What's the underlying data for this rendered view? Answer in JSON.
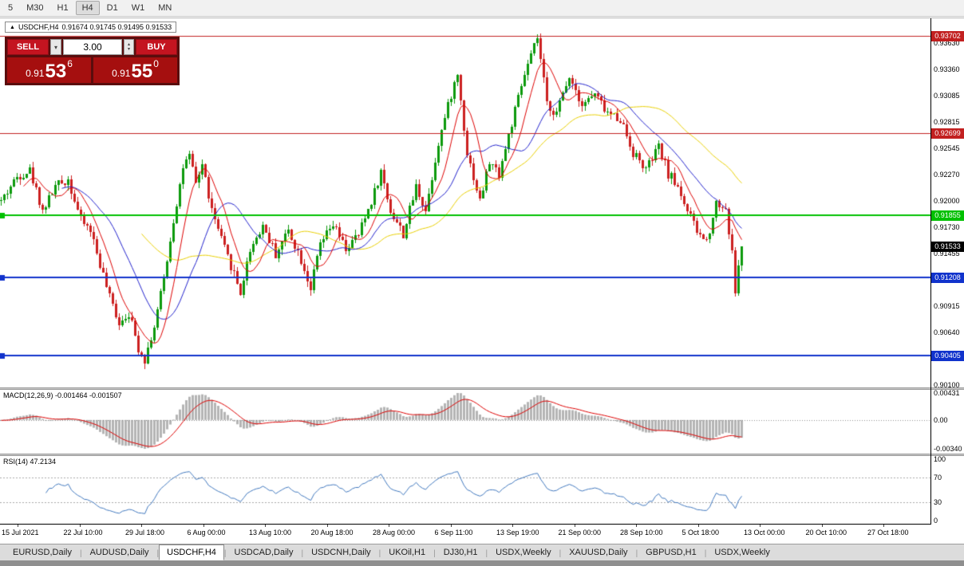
{
  "toolbar": {
    "timeframes": [
      "5",
      "M30",
      "H1",
      "H4",
      "D1",
      "W1",
      "MN"
    ],
    "active": "H4"
  },
  "chart_header": {
    "marker": "▲",
    "symbol": "USDCHF,H4",
    "ohlc": "0.91674 0.91745 0.91495 0.91533"
  },
  "trade_panel": {
    "sell_label": "SELL",
    "buy_label": "BUY",
    "volume": "3.00",
    "dropdown_icon": "▾",
    "spin_up_icon": "▴",
    "spin_down_icon": "▾",
    "bid": {
      "prefix": "0.91",
      "big": "53",
      "sup": "6"
    },
    "ask": {
      "prefix": "0.91",
      "big": "55",
      "sup": "0"
    }
  },
  "chart_data": {
    "type": "candlestick",
    "symbol": "USDCHF",
    "timeframe": "H4",
    "title": "USDCHF,H4 0.91674 0.91745 0.91495 0.91533",
    "open": "0.91674",
    "high": "0.91745",
    "low": "0.91495",
    "close": "0.91533",
    "ylim": [
      0.901,
      0.93702
    ],
    "price_axis_ticks": [
      "0.93630",
      "0.93360",
      "0.93085",
      "0.92815",
      "0.92545",
      "0.92270",
      "0.92000",
      "0.91730",
      "0.91455",
      "0.91185",
      "0.90915",
      "0.90640",
      "0.90370",
      "0.90100"
    ],
    "hlines": [
      {
        "price": 0.93702,
        "label": "0.93702",
        "color": "#c22020",
        "width": 1,
        "left_marker": false
      },
      {
        "price": 0.92699,
        "label": "0.92699",
        "color": "#c22020",
        "width": 1,
        "left_marker": false
      },
      {
        "price": 0.91855,
        "label": "0.91855",
        "color": "#00c000",
        "width": 2,
        "left_marker": true
      },
      {
        "price": 0.91208,
        "label": "0.91208",
        "color": "#1133cc",
        "width": 2,
        "left_marker": true
      },
      {
        "price": 0.90405,
        "label": "0.90405",
        "color": "#1133cc",
        "width": 2,
        "left_marker": true
      }
    ],
    "current_price": {
      "price": 0.91533,
      "label": "0.91533",
      "bg": "#000000"
    },
    "x_labels": [
      "15 Jul 2021",
      "22 Jul 10:00",
      "29 Jul 18:00",
      "6 Aug 00:00",
      "13 Aug 10:00",
      "20 Aug 18:00",
      "28 Aug 00:00",
      "6 Sep 11:00",
      "13 Sep 19:00",
      "21 Sep 00:00",
      "28 Sep 10:00",
      "5 Oct 18:00",
      "13 Oct 00:00",
      "20 Oct 10:00",
      "27 Oct 18:00"
    ],
    "num_candles": 233,
    "candle_spacing": 4,
    "seed": 42,
    "noise": 0.0005,
    "wick": 0.0006,
    "price_anchors": [
      [
        0,
        0.92
      ],
      [
        5,
        0.9225
      ],
      [
        9,
        0.9232
      ],
      [
        13,
        0.919
      ],
      [
        17,
        0.9215
      ],
      [
        21,
        0.9222
      ],
      [
        25,
        0.918
      ],
      [
        28,
        0.917
      ],
      [
        31,
        0.9135
      ],
      [
        34,
        0.91
      ],
      [
        37,
        0.9075
      ],
      [
        40,
        0.9085
      ],
      [
        43,
        0.9048
      ],
      [
        45,
        0.9037
      ],
      [
        48,
        0.907
      ],
      [
        51,
        0.912
      ],
      [
        54,
        0.918
      ],
      [
        57,
        0.9235
      ],
      [
        59,
        0.9245
      ],
      [
        61,
        0.9218
      ],
      [
        63,
        0.9238
      ],
      [
        66,
        0.919
      ],
      [
        70,
        0.915
      ],
      [
        73,
        0.9125
      ],
      [
        75,
        0.9105
      ],
      [
        78,
        0.915
      ],
      [
        82,
        0.9175
      ],
      [
        86,
        0.9145
      ],
      [
        90,
        0.917
      ],
      [
        94,
        0.914
      ],
      [
        97,
        0.911
      ],
      [
        100,
        0.9155
      ],
      [
        104,
        0.9175
      ],
      [
        108,
        0.915
      ],
      [
        112,
        0.9165
      ],
      [
        116,
        0.92
      ],
      [
        119,
        0.923
      ],
      [
        122,
        0.919
      ],
      [
        126,
        0.9165
      ],
      [
        130,
        0.9215
      ],
      [
        133,
        0.919
      ],
      [
        137,
        0.926
      ],
      [
        141,
        0.931
      ],
      [
        143,
        0.933
      ],
      [
        146,
        0.925
      ],
      [
        150,
        0.92
      ],
      [
        153,
        0.924
      ],
      [
        156,
        0.9228
      ],
      [
        160,
        0.928
      ],
      [
        164,
        0.933
      ],
      [
        168,
        0.9368
      ],
      [
        171,
        0.93
      ],
      [
        174,
        0.929
      ],
      [
        178,
        0.933
      ],
      [
        182,
        0.93
      ],
      [
        186,
        0.931
      ],
      [
        190,
        0.929
      ],
      [
        194,
        0.9285
      ],
      [
        198,
        0.925
      ],
      [
        202,
        0.9232
      ],
      [
        206,
        0.9255
      ],
      [
        209,
        0.9228
      ],
      [
        212,
        0.9215
      ],
      [
        215,
        0.919
      ],
      [
        218,
        0.9168
      ],
      [
        221,
        0.9158
      ],
      [
        224,
        0.9198
      ],
      [
        227,
        0.9192
      ],
      [
        229,
        0.9145
      ],
      [
        230,
        0.9108
      ],
      [
        232,
        0.91533
      ]
    ],
    "force": {
      "last_close": 0.91533,
      "highs": [
        [
          168,
          0.93695
        ]
      ],
      "lows": [
        [
          45,
          0.90345
        ],
        [
          230,
          0.91035
        ]
      ]
    },
    "ma_periods": {
      "fast": 8,
      "mid": 20,
      "slow": 45
    },
    "colors": {
      "up": "#0c9a0c",
      "down": "#cc2020",
      "ma_fast": "#dd0000",
      "ma_mid": "#2222cc",
      "ma_slow": "#e8cf00",
      "macd_hist": "#b4b4b4",
      "macd_signal": "#dd0000",
      "rsi": "#4178be",
      "level_dotted": "#a8a8a8"
    }
  },
  "macd_panel": {
    "label": "MACD(12,26,9) -0.001464 -0.001507",
    "axis": [
      "0.00431",
      "0.00",
      "-0.00340"
    ]
  },
  "rsi_panel": {
    "label": "RSI(14) 47.2134",
    "axis": [
      "100",
      "70",
      "30",
      "0"
    ],
    "levels": [
      70,
      30
    ]
  },
  "bottom_tabs": {
    "separator": "|",
    "active_index": 2,
    "tabs": [
      "EURUSD,Daily",
      "AUDUSD,Daily",
      "USDCHF,H4",
      "USDCAD,Daily",
      "USDCNH,Daily",
      "UKOil,H1",
      "DJ30,H1",
      "USDX,Weekly",
      "XAUUSD,Daily",
      "GBPUSD,H1",
      "USDX,Weekly"
    ]
  }
}
